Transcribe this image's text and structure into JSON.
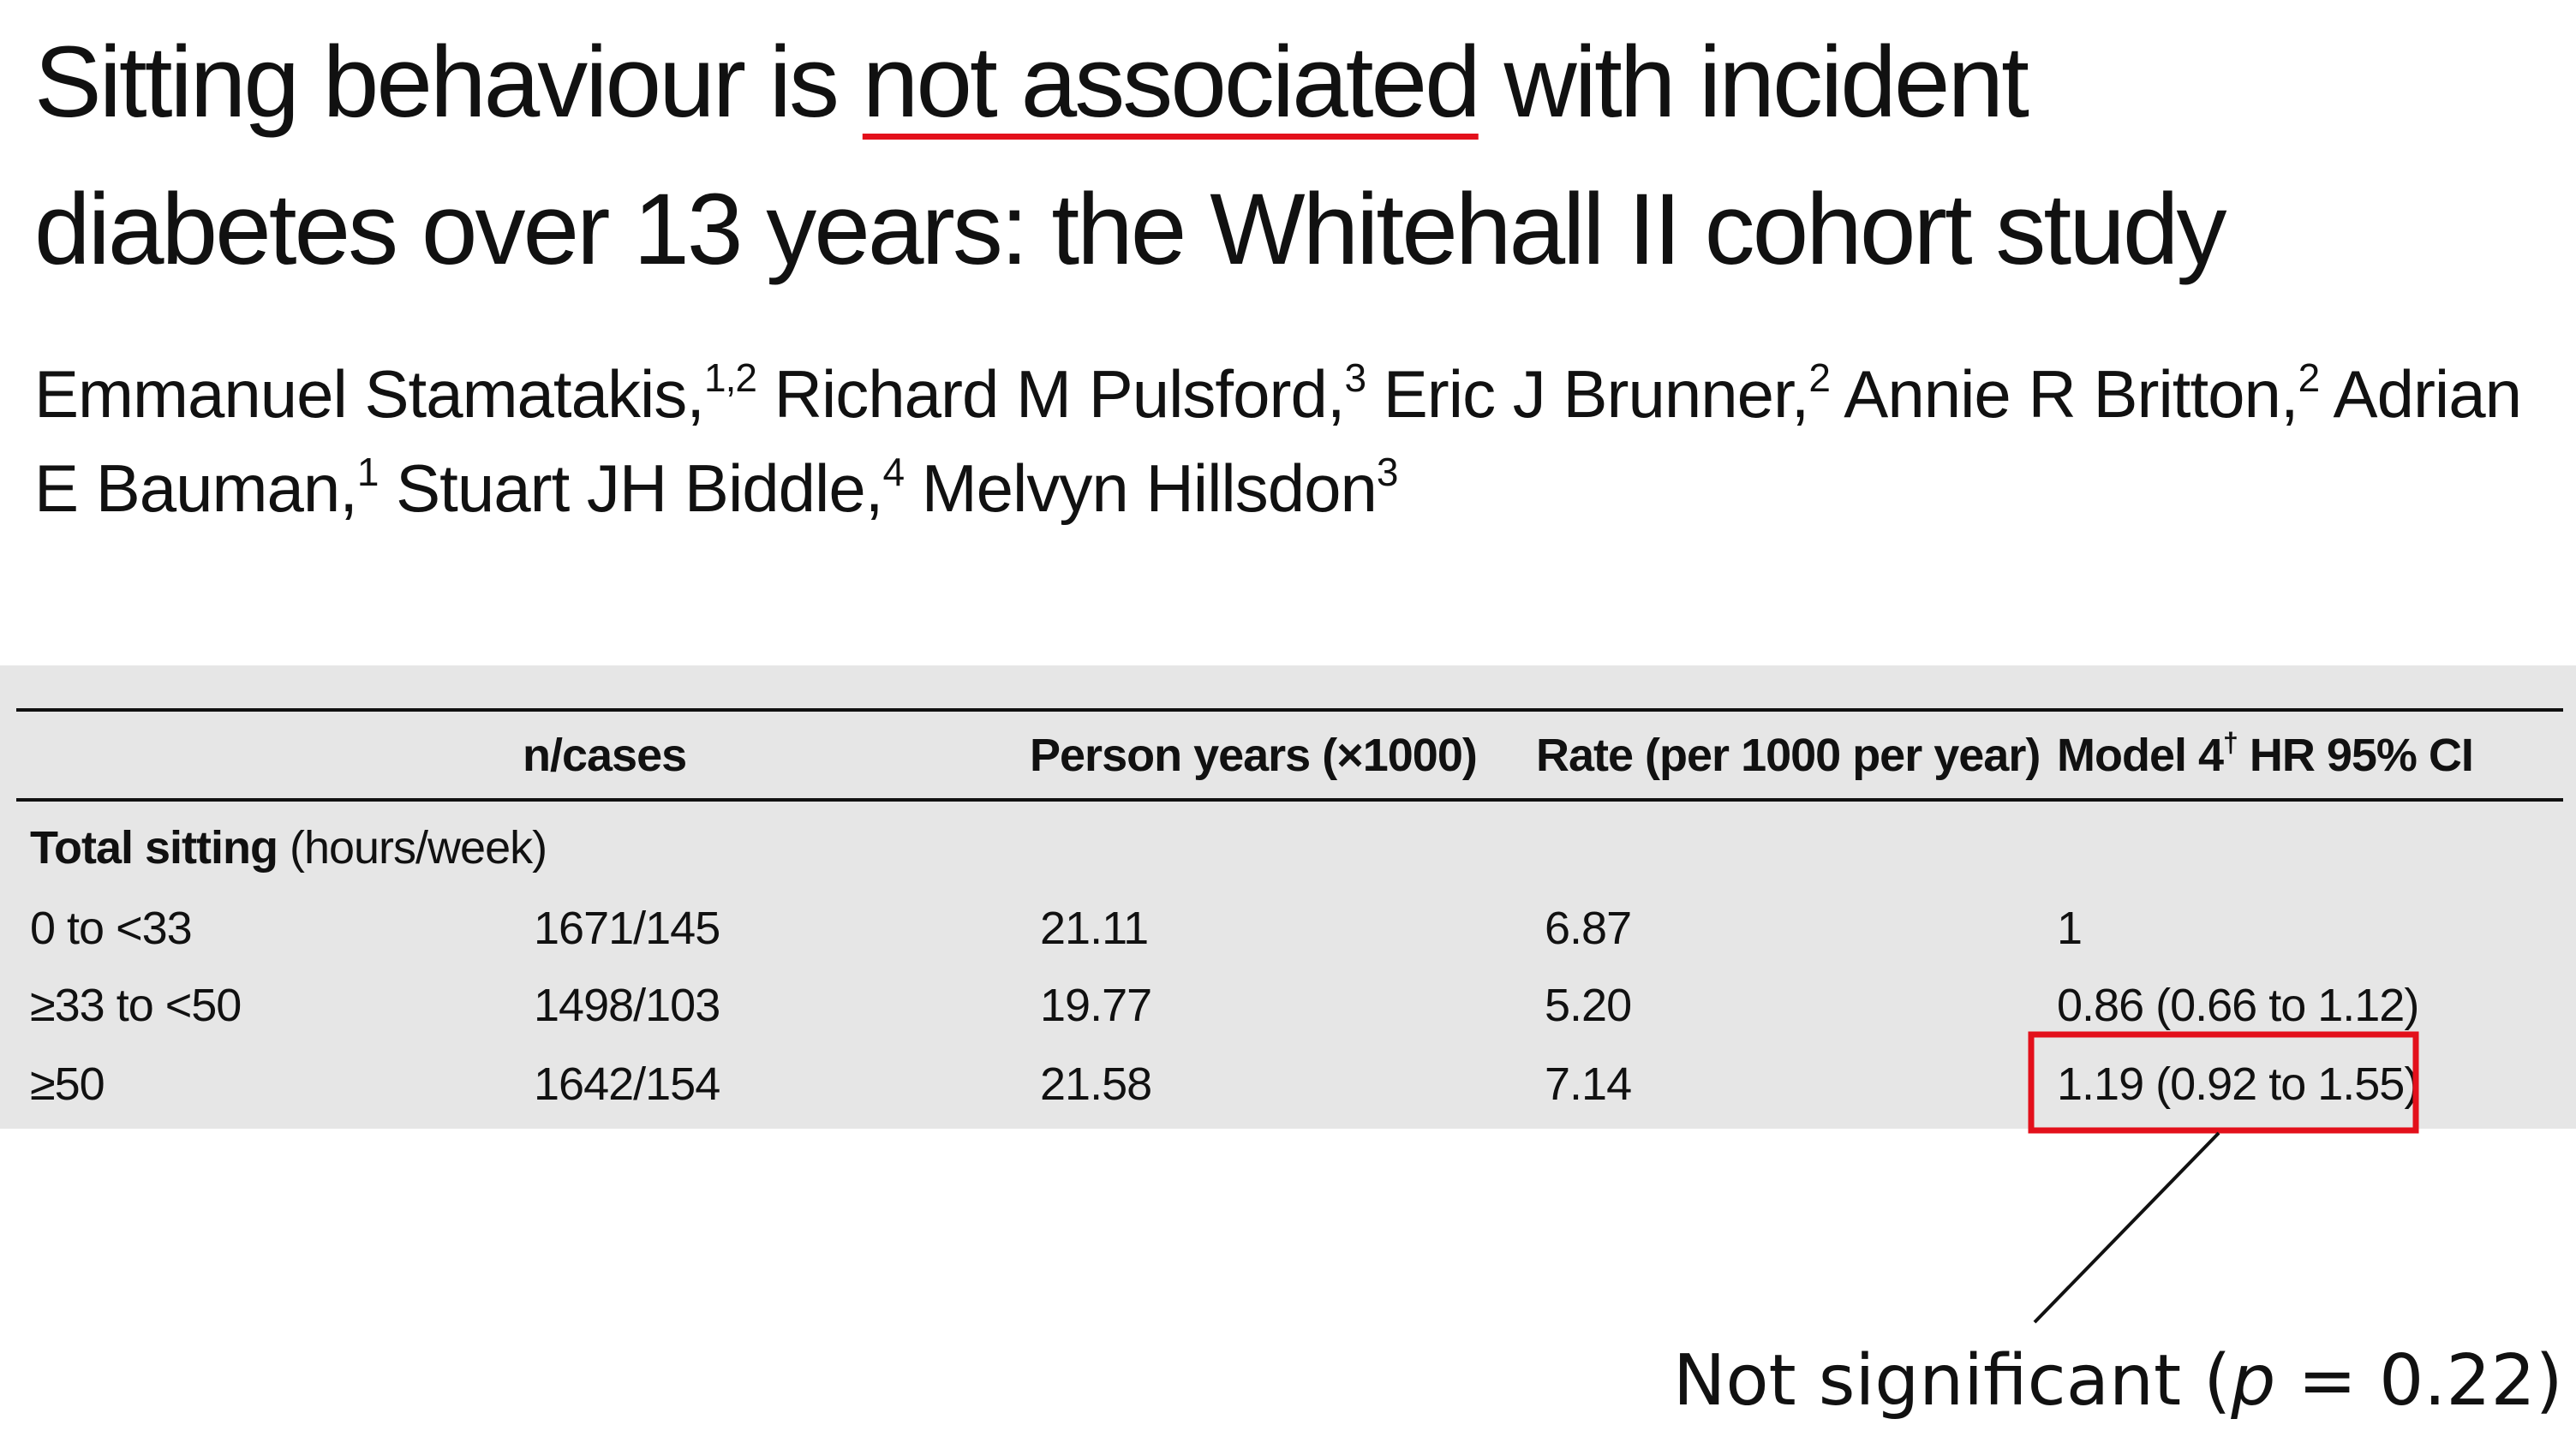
{
  "header": {
    "title_parts": [
      "Sitting behaviour is ",
      "not associated",
      " with incident",
      "diabetes over 13 years: the Whitehall II cohort study"
    ],
    "authors": [
      {
        "name": "Emmanuel Stamatakis,",
        "affil": "1,2"
      },
      {
        "name": "Richard M Pulsford,",
        "affil": "3"
      },
      {
        "name": "Eric J Brunner,",
        "affil": "2"
      },
      {
        "name": "Annie R Britton,",
        "affil": "2"
      },
      {
        "name": "Adrian E Bauman,",
        "affil": "1"
      },
      {
        "name": "Stuart JH Biddle,",
        "affil": "4"
      },
      {
        "name": "Melvyn Hillsdon",
        "affil": "3"
      }
    ]
  },
  "table": {
    "headers": [
      "n/cases",
      "Person years (×1000)",
      "Rate (per 1000 per year)",
      {
        "text": "Model 4",
        "sup": "†",
        "rest": " HR 95% CI"
      }
    ],
    "section": {
      "bold": "Total sitting",
      "rest": " (hours/week)"
    },
    "rows": [
      [
        "0 to <33",
        "1671/145",
        "21.11",
        "6.87",
        "1"
      ],
      [
        "≥33 to <50",
        "1498/103",
        "19.77",
        "5.20",
        "0.86 (0.66 to 1.12)"
      ],
      [
        "≥50",
        "1642/154",
        "21.58",
        "7.14",
        "1.19 (0.92 to 1.55)"
      ]
    ]
  },
  "annotation": {
    "before": "Not significant (",
    "italic": "p",
    "after": " = 0.22)"
  }
}
